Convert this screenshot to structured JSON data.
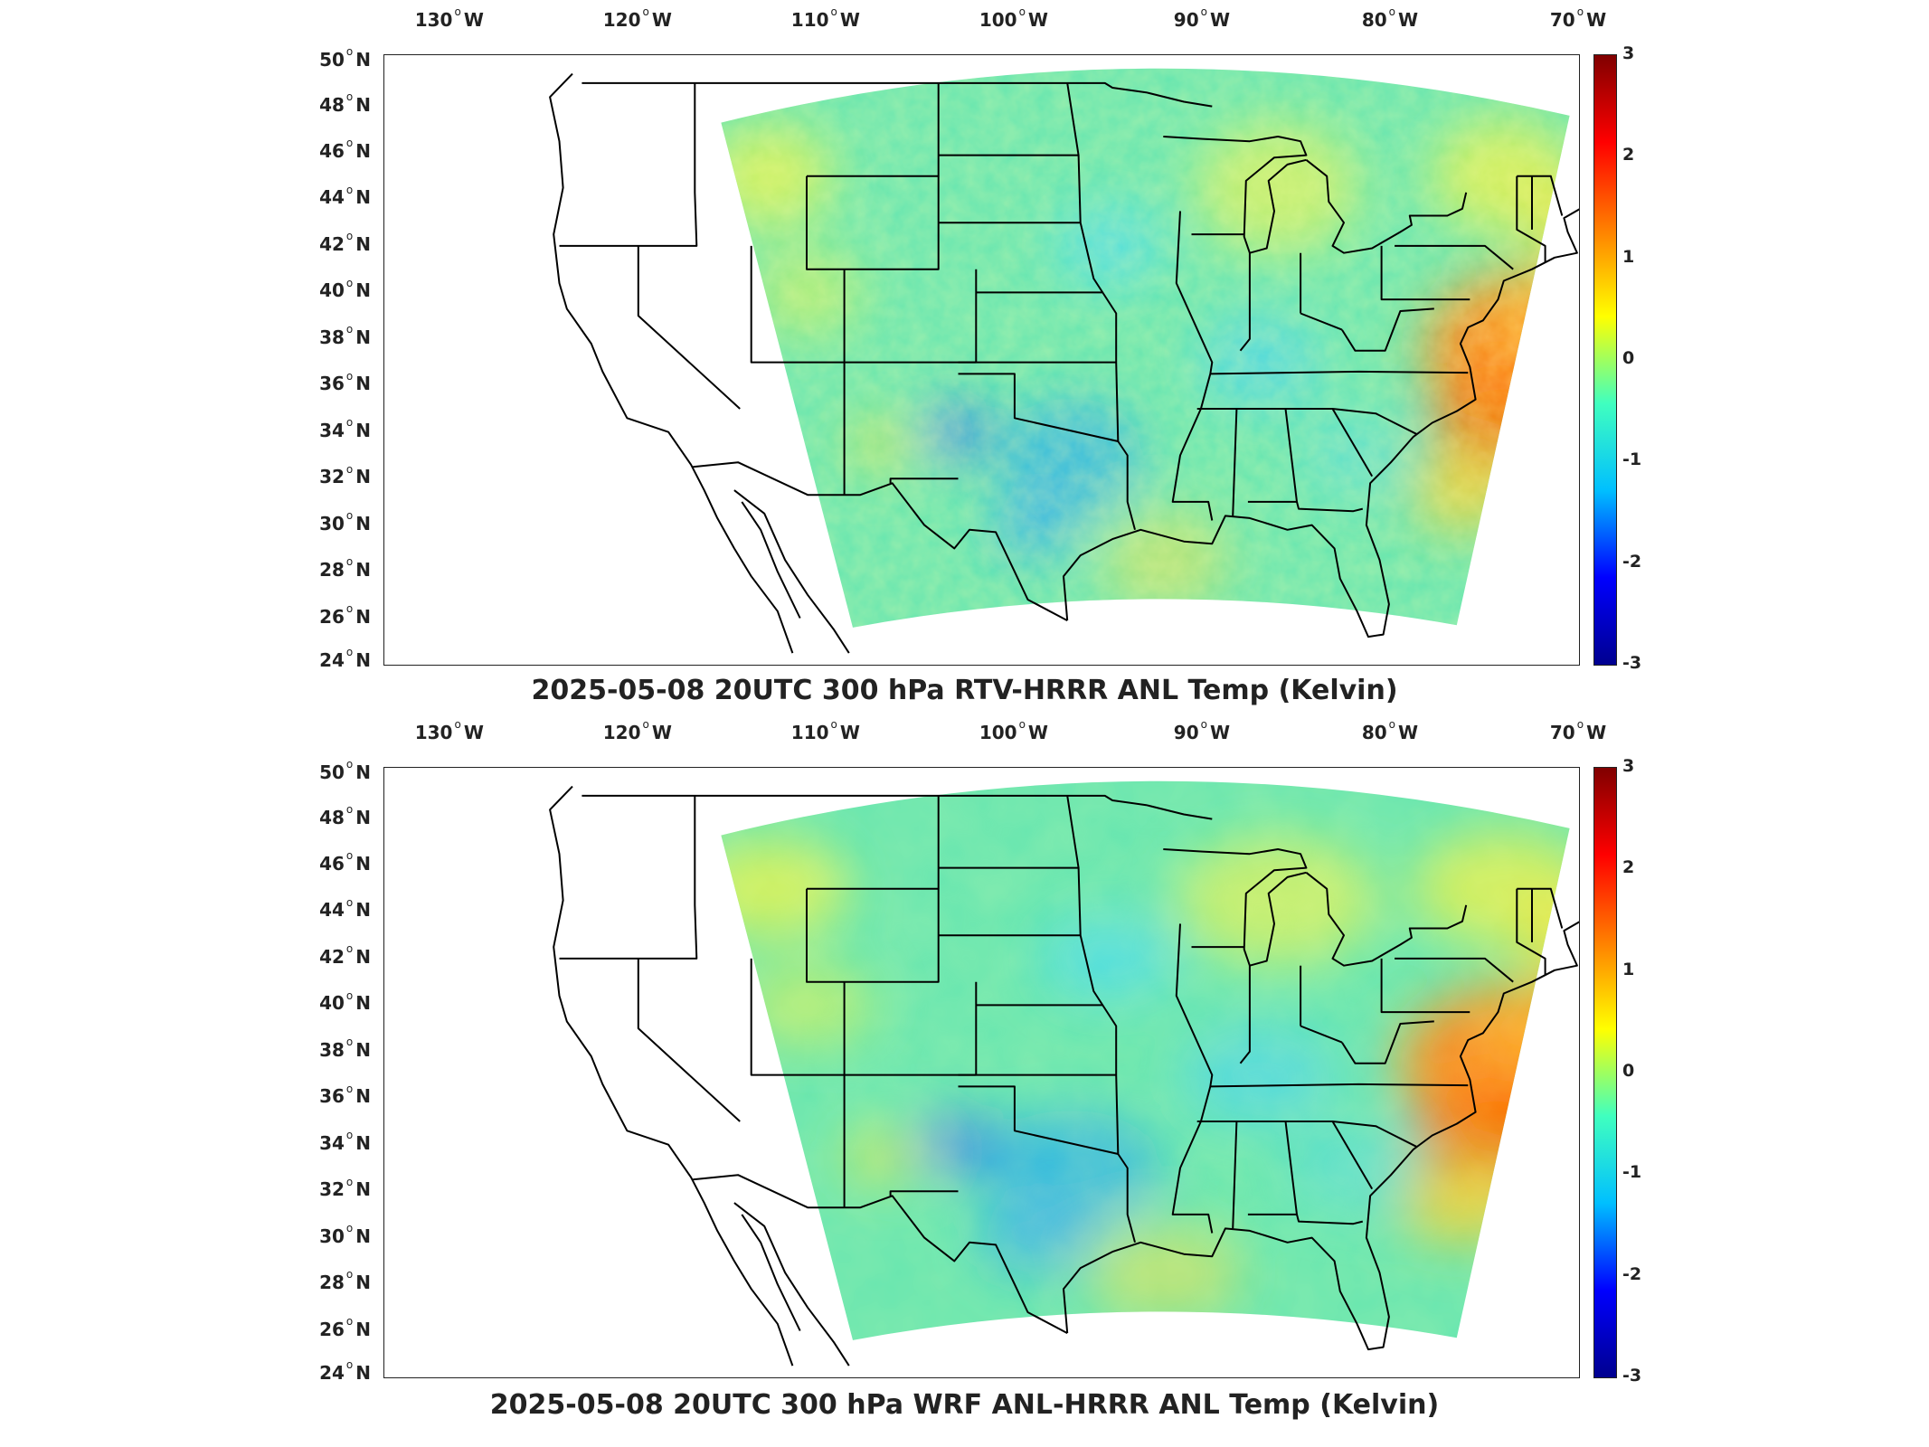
{
  "figure": {
    "panels": [
      {
        "title": "2025-05-08 20UTC 300 hPa RTV-HRRR ANL Temp (Kelvin)",
        "variant": "rtv"
      },
      {
        "title": "2025-05-08 20UTC 300 hPa WRF ANL-HRRR ANL Temp (Kelvin)",
        "variant": "wrf"
      }
    ],
    "lon_ticks": [
      {
        "deg": "130",
        "hem": "W"
      },
      {
        "deg": "120",
        "hem": "W"
      },
      {
        "deg": "110",
        "hem": "W"
      },
      {
        "deg": "100",
        "hem": "W"
      },
      {
        "deg": "90",
        "hem": "W"
      },
      {
        "deg": "80",
        "hem": "W"
      },
      {
        "deg": "70",
        "hem": "W"
      }
    ],
    "lat_ticks": [
      {
        "deg": "50",
        "hem": "N"
      },
      {
        "deg": "48",
        "hem": "N"
      },
      {
        "deg": "46",
        "hem": "N"
      },
      {
        "deg": "44",
        "hem": "N"
      },
      {
        "deg": "42",
        "hem": "N"
      },
      {
        "deg": "40",
        "hem": "N"
      },
      {
        "deg": "38",
        "hem": "N"
      },
      {
        "deg": "36",
        "hem": "N"
      },
      {
        "deg": "34",
        "hem": "N"
      },
      {
        "deg": "32",
        "hem": "N"
      },
      {
        "deg": "30",
        "hem": "N"
      },
      {
        "deg": "28",
        "hem": "N"
      },
      {
        "deg": "26",
        "hem": "N"
      },
      {
        "deg": "24",
        "hem": "N"
      }
    ],
    "colorbar": {
      "min": -3,
      "max": 3,
      "ticks": [
        "3",
        "2",
        "1",
        "0",
        "-1",
        "-2",
        "-3"
      ],
      "colormap": "jet",
      "colors": [
        "#00008f",
        "#0000ff",
        "#00bfff",
        "#40ffbf",
        "#ffff00",
        "#ff7f00",
        "#ff0000",
        "#800000"
      ]
    },
    "colors": {
      "domain_base": "#66e6b0",
      "warm_anomaly": "#ff8c1a",
      "cool_anomaly": "#1a9cff",
      "borders": "#000000"
    }
  }
}
